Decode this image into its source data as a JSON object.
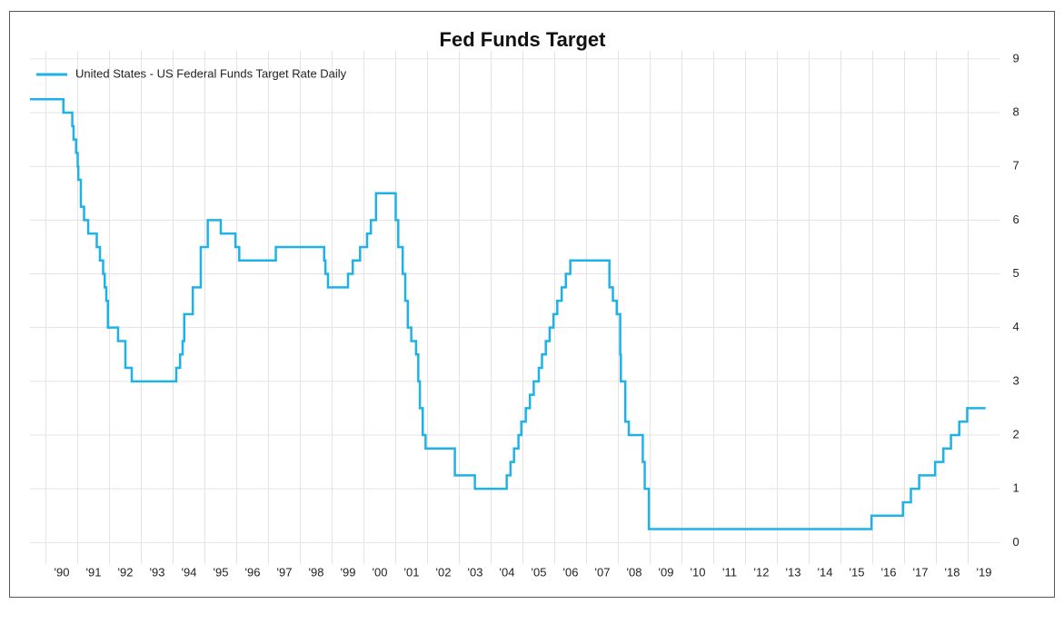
{
  "chart_data": {
    "type": "line",
    "step": true,
    "title": "Fed Funds Target",
    "series": [
      {
        "name": "United States - US Federal Funds Target Rate Daily",
        "color": "#1fb2e8",
        "x": [
          1989.5,
          1990.55,
          1990.83,
          1990.87,
          1990.95,
          1991.0,
          1991.02,
          1991.1,
          1991.2,
          1991.33,
          1991.6,
          1991.7,
          1991.8,
          1991.85,
          1991.9,
          1991.95,
          1992.27,
          1992.5,
          1992.7,
          1994.1,
          1994.22,
          1994.3,
          1994.35,
          1994.62,
          1994.87,
          1995.09,
          1995.5,
          1995.96,
          1996.08,
          1997.23,
          1998.75,
          1998.79,
          1998.87,
          1999.5,
          1999.65,
          1999.88,
          2000.1,
          2000.22,
          2000.38,
          2001.0,
          2001.08,
          2001.22,
          2001.3,
          2001.38,
          2001.49,
          2001.64,
          2001.71,
          2001.76,
          2001.85,
          2001.94,
          2002.86,
          2003.49,
          2004.49,
          2004.61,
          2004.72,
          2004.86,
          2004.95,
          2005.09,
          2005.22,
          2005.34,
          2005.5,
          2005.6,
          2005.72,
          2005.84,
          2005.96,
          2006.08,
          2006.22,
          2006.35,
          2006.49,
          2007.72,
          2007.83,
          2007.95,
          2008.06,
          2008.08,
          2008.22,
          2008.33,
          2008.77,
          2008.83,
          2008.96,
          2015.96,
          2016.95,
          2017.2,
          2017.46,
          2017.96,
          2018.22,
          2018.46,
          2018.72,
          2018.97,
          2019.55
        ],
        "values": [
          8.25,
          8.0,
          7.75,
          7.5,
          7.25,
          7.0,
          6.75,
          6.25,
          6.0,
          5.75,
          5.5,
          5.25,
          5.0,
          4.75,
          4.5,
          4.0,
          3.75,
          3.25,
          3.0,
          3.25,
          3.5,
          3.75,
          4.25,
          4.75,
          5.5,
          6.0,
          5.75,
          5.5,
          5.25,
          5.5,
          5.25,
          5.0,
          4.75,
          5.0,
          5.25,
          5.5,
          5.75,
          6.0,
          6.5,
          6.0,
          5.5,
          5.0,
          4.5,
          4.0,
          3.75,
          3.5,
          3.0,
          2.5,
          2.0,
          1.75,
          1.25,
          1.0,
          1.25,
          1.5,
          1.75,
          2.0,
          2.25,
          2.5,
          2.75,
          3.0,
          3.25,
          3.5,
          3.75,
          4.0,
          4.25,
          4.5,
          4.75,
          5.0,
          5.25,
          4.75,
          4.5,
          4.25,
          3.5,
          3.0,
          2.25,
          2.0,
          1.5,
          1.0,
          0.25,
          0.5,
          0.75,
          1.0,
          1.25,
          1.5,
          1.75,
          2.0,
          2.25,
          2.5,
          2.5
        ]
      }
    ],
    "xlim": [
      1989.5,
      2020.0
    ],
    "xticks": [
      {
        "value": 1990,
        "label": "'90"
      },
      {
        "value": 1991,
        "label": "'91"
      },
      {
        "value": 1992,
        "label": "'92"
      },
      {
        "value": 1993,
        "label": "'93"
      },
      {
        "value": 1994,
        "label": "'94"
      },
      {
        "value": 1995,
        "label": "'95"
      },
      {
        "value": 1996,
        "label": "'96"
      },
      {
        "value": 1997,
        "label": "'97"
      },
      {
        "value": 1998,
        "label": "'98"
      },
      {
        "value": 1999,
        "label": "'99"
      },
      {
        "value": 2000,
        "label": "'00"
      },
      {
        "value": 2001,
        "label": "'01"
      },
      {
        "value": 2002,
        "label": "'02"
      },
      {
        "value": 2003,
        "label": "'03"
      },
      {
        "value": 2004,
        "label": "'04"
      },
      {
        "value": 2005,
        "label": "'05"
      },
      {
        "value": 2006,
        "label": "'06"
      },
      {
        "value": 2007,
        "label": "'07"
      },
      {
        "value": 2008,
        "label": "'08"
      },
      {
        "value": 2009,
        "label": "'09"
      },
      {
        "value": 2010,
        "label": "'10"
      },
      {
        "value": 2011,
        "label": "'11"
      },
      {
        "value": 2012,
        "label": "'12"
      },
      {
        "value": 2013,
        "label": "'13"
      },
      {
        "value": 2014,
        "label": "'14"
      },
      {
        "value": 2015,
        "label": "'15"
      },
      {
        "value": 2016,
        "label": "'16"
      },
      {
        "value": 2017,
        "label": "'17"
      },
      {
        "value": 2018,
        "label": "'18"
      },
      {
        "value": 2019,
        "label": "'19"
      }
    ],
    "ylim": [
      -0.4,
      9.15
    ],
    "yticks": [
      0,
      1,
      2,
      3,
      4,
      5,
      6,
      7,
      8,
      9
    ],
    "grid": true,
    "legend": "upper left",
    "y_axis_side": "right"
  }
}
